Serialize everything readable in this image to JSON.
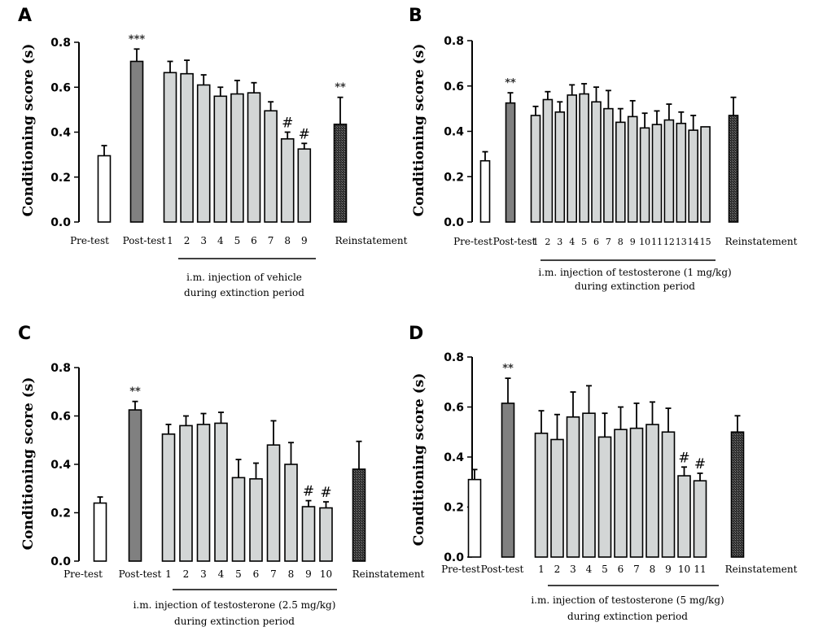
{
  "chart_data": [
    {
      "panel": "A",
      "type": "bar",
      "ylabel": "Conditioning score (s)",
      "ylim": [
        0,
        0.8
      ],
      "yticks": [
        "0.0",
        "0.2",
        "0.4",
        "0.6",
        "0.8"
      ],
      "bracket_text": [
        "i.m. injection of vehicle",
        "during extinction period"
      ],
      "bars": [
        {
          "label": "Pre-test",
          "value": 0.295,
          "error": 0.045,
          "group": "pre",
          "annotation": ""
        },
        {
          "label": "Post-test",
          "value": 0.715,
          "error": 0.055,
          "group": "post",
          "annotation": "***"
        },
        {
          "label": "1",
          "value": 0.665,
          "error": 0.05,
          "group": "ext",
          "annotation": ""
        },
        {
          "label": "2",
          "value": 0.66,
          "error": 0.06,
          "group": "ext",
          "annotation": ""
        },
        {
          "label": "3",
          "value": 0.61,
          "error": 0.045,
          "group": "ext",
          "annotation": ""
        },
        {
          "label": "4",
          "value": 0.56,
          "error": 0.04,
          "group": "ext",
          "annotation": ""
        },
        {
          "label": "5",
          "value": 0.57,
          "error": 0.06,
          "group": "ext",
          "annotation": ""
        },
        {
          "label": "6",
          "value": 0.575,
          "error": 0.045,
          "group": "ext",
          "annotation": ""
        },
        {
          "label": "7",
          "value": 0.495,
          "error": 0.04,
          "group": "ext",
          "annotation": ""
        },
        {
          "label": "8",
          "value": 0.37,
          "error": 0.03,
          "group": "ext",
          "annotation": "#"
        },
        {
          "label": "9",
          "value": 0.325,
          "error": 0.025,
          "group": "ext",
          "annotation": "#"
        },
        {
          "label": "Reinstatement",
          "value": 0.435,
          "error": 0.12,
          "group": "rein",
          "annotation": "**"
        }
      ]
    },
    {
      "panel": "B",
      "type": "bar",
      "ylabel": "Conditioning score (s)",
      "ylim": [
        0,
        0.8
      ],
      "yticks": [
        "0.0",
        "0.2",
        "0.4",
        "0.6",
        "0.8"
      ],
      "bracket_text": [
        "i.m. injection of testosterone (1 mg/kg)",
        "during extinction period"
      ],
      "bars": [
        {
          "label": "Pre-test",
          "value": 0.27,
          "error": 0.04,
          "group": "pre",
          "annotation": ""
        },
        {
          "label": "Post-test",
          "value": 0.525,
          "error": 0.045,
          "group": "post",
          "annotation": "**"
        },
        {
          "label": "1",
          "value": 0.47,
          "error": 0.04,
          "group": "ext",
          "annotation": ""
        },
        {
          "label": "2",
          "value": 0.54,
          "error": 0.035,
          "group": "ext",
          "annotation": ""
        },
        {
          "label": "3",
          "value": 0.485,
          "error": 0.045,
          "group": "ext",
          "annotation": ""
        },
        {
          "label": "4",
          "value": 0.56,
          "error": 0.045,
          "group": "ext",
          "annotation": ""
        },
        {
          "label": "5",
          "value": 0.565,
          "error": 0.045,
          "group": "ext",
          "annotation": ""
        },
        {
          "label": "6",
          "value": 0.53,
          "error": 0.065,
          "group": "ext",
          "annotation": ""
        },
        {
          "label": "7",
          "value": 0.5,
          "error": 0.08,
          "group": "ext",
          "annotation": ""
        },
        {
          "label": "8",
          "value": 0.44,
          "error": 0.06,
          "group": "ext",
          "annotation": ""
        },
        {
          "label": "9",
          "value": 0.465,
          "error": 0.07,
          "group": "ext",
          "annotation": ""
        },
        {
          "label": "10",
          "value": 0.415,
          "error": 0.065,
          "group": "ext",
          "annotation": ""
        },
        {
          "label": "11",
          "value": 0.43,
          "error": 0.06,
          "group": "ext",
          "annotation": ""
        },
        {
          "label": "12",
          "value": 0.45,
          "error": 0.07,
          "group": "ext",
          "annotation": ""
        },
        {
          "label": "13",
          "value": 0.435,
          "error": 0.05,
          "group": "ext",
          "annotation": ""
        },
        {
          "label": "14",
          "value": 0.405,
          "error": 0.065,
          "group": "ext",
          "annotation": ""
        },
        {
          "label": "15",
          "value": 0.42,
          "error": 0.0,
          "group": "ext",
          "annotation": ""
        },
        {
          "label": "Reinstatement",
          "value": 0.47,
          "error": 0.08,
          "group": "rein",
          "annotation": ""
        }
      ]
    },
    {
      "panel": "C",
      "type": "bar",
      "ylabel": "Conditioning score (s)",
      "ylim": [
        0,
        0.8
      ],
      "yticks": [
        "0.0",
        "0.2",
        "0.4",
        "0.6",
        "0.8"
      ],
      "bracket_text": [
        "i.m. injection of testosterone (2.5 mg/kg)",
        "during extinction period"
      ],
      "bars": [
        {
          "label": "Pre-test",
          "value": 0.24,
          "error": 0.025,
          "group": "pre",
          "annotation": ""
        },
        {
          "label": "Post-test",
          "value": 0.625,
          "error": 0.035,
          "group": "post",
          "annotation": "**"
        },
        {
          "label": "1",
          "value": 0.525,
          "error": 0.04,
          "group": "ext",
          "annotation": ""
        },
        {
          "label": "2",
          "value": 0.56,
          "error": 0.04,
          "group": "ext",
          "annotation": ""
        },
        {
          "label": "3",
          "value": 0.565,
          "error": 0.045,
          "group": "ext",
          "annotation": ""
        },
        {
          "label": "4",
          "value": 0.57,
          "error": 0.045,
          "group": "ext",
          "annotation": ""
        },
        {
          "label": "5",
          "value": 0.345,
          "error": 0.075,
          "group": "ext",
          "annotation": ""
        },
        {
          "label": "6",
          "value": 0.34,
          "error": 0.065,
          "group": "ext",
          "annotation": ""
        },
        {
          "label": "7",
          "value": 0.48,
          "error": 0.1,
          "group": "ext",
          "annotation": ""
        },
        {
          "label": "8",
          "value": 0.4,
          "error": 0.09,
          "group": "ext",
          "annotation": ""
        },
        {
          "label": "9",
          "value": 0.225,
          "error": 0.025,
          "group": "ext",
          "annotation": "#"
        },
        {
          "label": "10",
          "value": 0.22,
          "error": 0.025,
          "group": "ext",
          "annotation": "#"
        },
        {
          "label": "Reinstatement",
          "value": 0.38,
          "error": 0.115,
          "group": "rein",
          "annotation": ""
        }
      ]
    },
    {
      "panel": "D",
      "type": "bar",
      "ylabel": "Conditioning score (s)",
      "ylim": [
        0,
        0.8
      ],
      "yticks": [
        "0.0",
        "0.2",
        "0.4",
        "0.6",
        "0.8"
      ],
      "bracket_text": [
        "i.m. injection of testosterone (5 mg/kg)",
        "during extinction period"
      ],
      "bars": [
        {
          "label": "Pre-test",
          "value": 0.31,
          "error": 0.04,
          "group": "pre",
          "annotation": ""
        },
        {
          "label": "Post-test",
          "value": 0.615,
          "error": 0.1,
          "group": "post",
          "annotation": "**"
        },
        {
          "label": "1",
          "value": 0.495,
          "error": 0.09,
          "group": "ext",
          "annotation": ""
        },
        {
          "label": "2",
          "value": 0.47,
          "error": 0.1,
          "group": "ext",
          "annotation": ""
        },
        {
          "label": "3",
          "value": 0.56,
          "error": 0.1,
          "group": "ext",
          "annotation": ""
        },
        {
          "label": "4",
          "value": 0.575,
          "error": 0.11,
          "group": "ext",
          "annotation": ""
        },
        {
          "label": "5",
          "value": 0.48,
          "error": 0.095,
          "group": "ext",
          "annotation": ""
        },
        {
          "label": "6",
          "value": 0.51,
          "error": 0.09,
          "group": "ext",
          "annotation": ""
        },
        {
          "label": "7",
          "value": 0.515,
          "error": 0.1,
          "group": "ext",
          "annotation": ""
        },
        {
          "label": "8",
          "value": 0.53,
          "error": 0.09,
          "group": "ext",
          "annotation": ""
        },
        {
          "label": "9",
          "value": 0.5,
          "error": 0.095,
          "group": "ext",
          "annotation": ""
        },
        {
          "label": "10",
          "value": 0.325,
          "error": 0.035,
          "group": "ext",
          "annotation": "#"
        },
        {
          "label": "11",
          "value": 0.305,
          "error": 0.03,
          "group": "ext",
          "annotation": "#"
        },
        {
          "label": "Reinstatement",
          "value": 0.5,
          "error": 0.065,
          "group": "rein",
          "annotation": ""
        }
      ]
    }
  ],
  "colors": {
    "pre": "#ffffff",
    "post": "#808080",
    "ext": "#d3d6d6",
    "rein": "#3a3a3a",
    "stroke": "#000000"
  }
}
